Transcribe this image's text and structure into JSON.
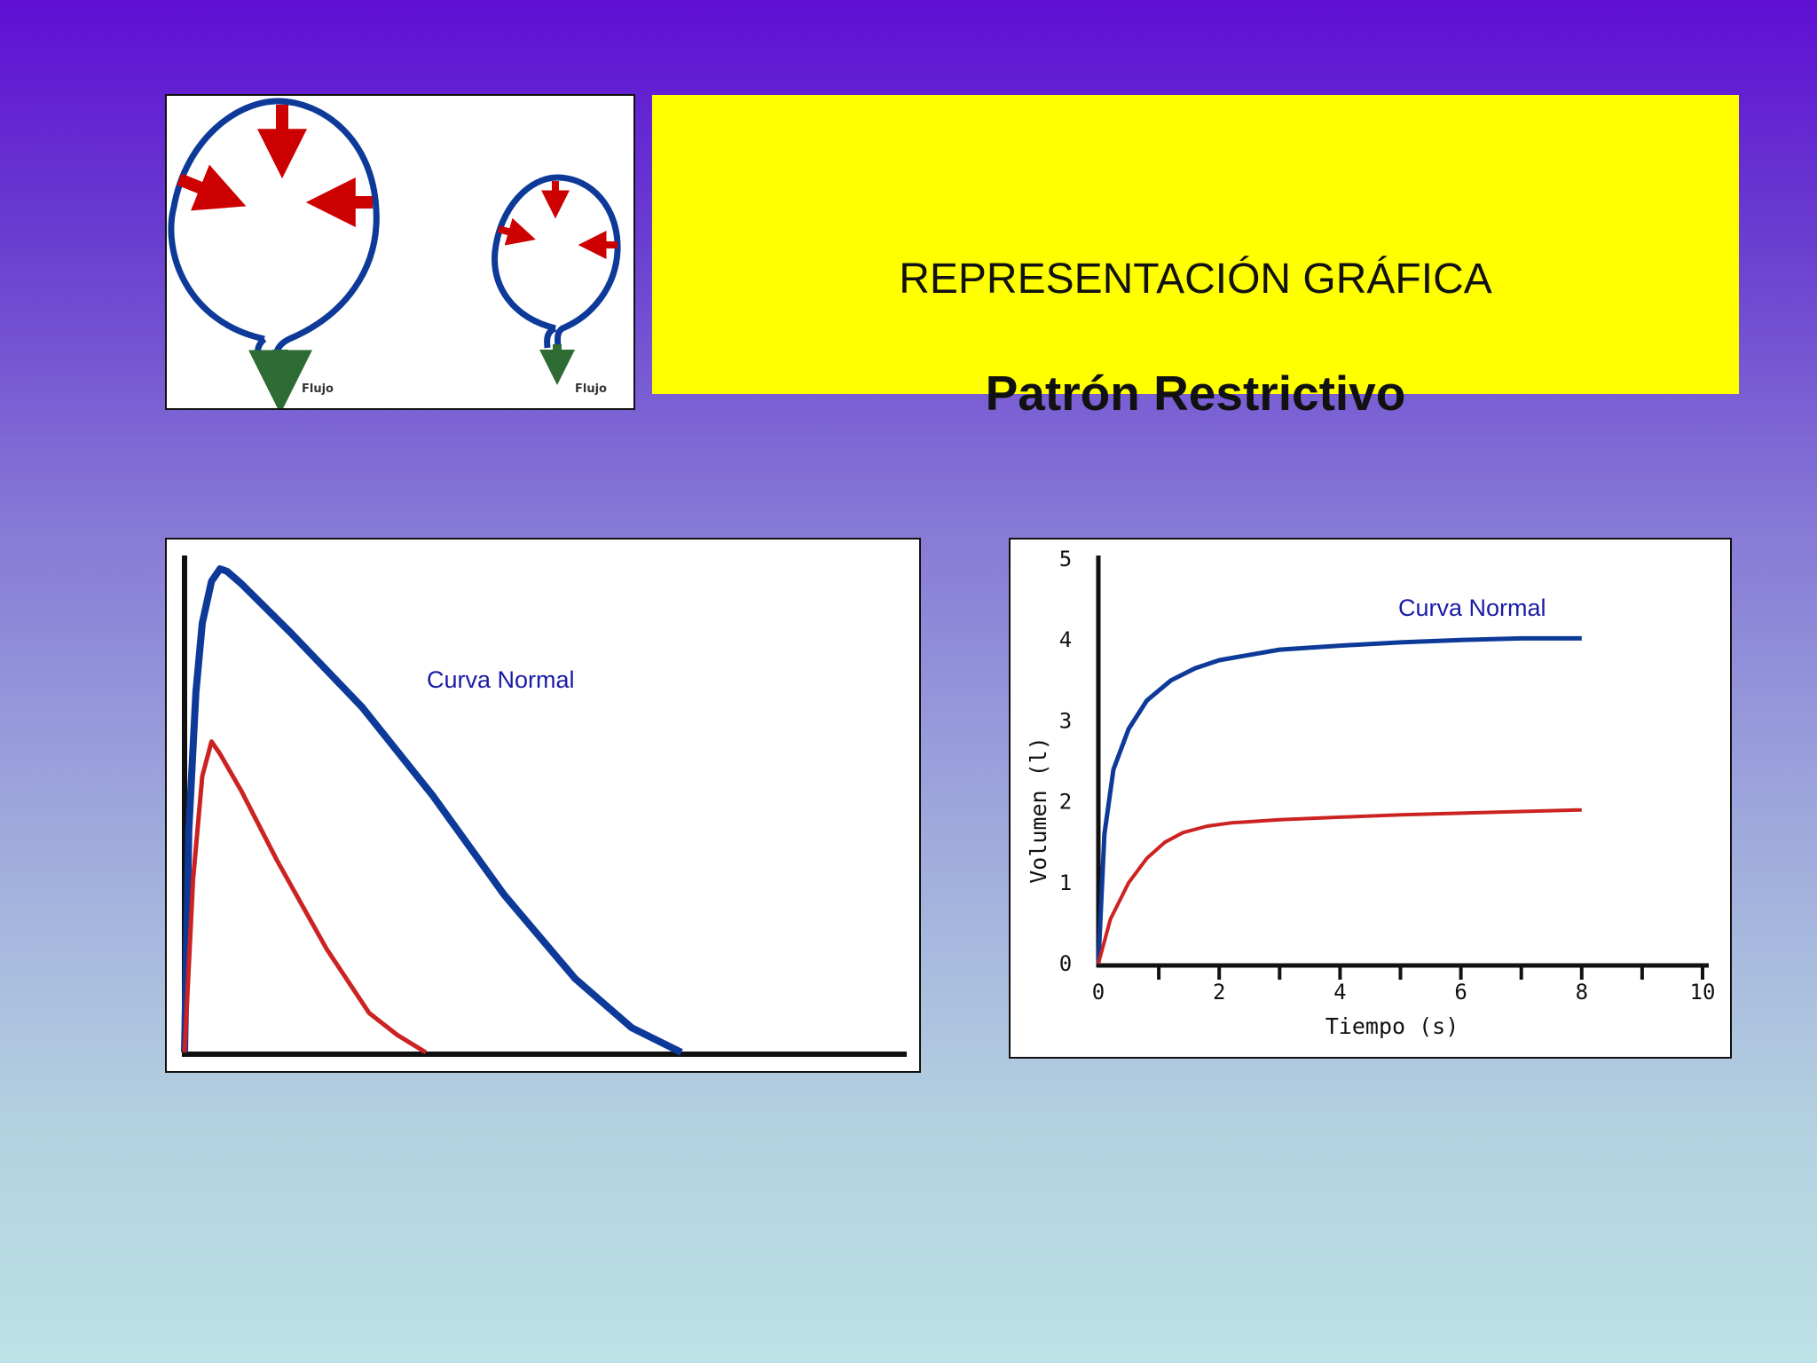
{
  "title": {
    "main": "REPRESENTACIÓN GRÁFICA",
    "subtitle": "Patrón Restrictivo"
  },
  "diagram": {
    "left_label": "Flujo",
    "right_label": "Flujo",
    "colors": {
      "outline": "#0d3a99",
      "pressure_arrow": "#cc0000",
      "flow_arrow": "#2e6b35"
    }
  },
  "chart_data": [
    {
      "type": "line",
      "title": "",
      "xlabel": "",
      "ylabel": "",
      "xlim": [
        0,
        10
      ],
      "ylim": [
        0,
        10
      ],
      "annotations": [
        {
          "text": "Curva Normal",
          "series": "normal"
        }
      ],
      "series": [
        {
          "id": "normal",
          "color": "#0d3a99",
          "x": [
            0,
            0.06,
            0.16,
            0.25,
            0.38,
            0.5,
            0.6,
            0.8,
            1.5,
            2.5,
            3.5,
            4.5,
            5.5,
            6.3,
            7.0
          ],
          "y": [
            0,
            4.5,
            7.3,
            8.7,
            9.55,
            9.8,
            9.75,
            9.5,
            8.5,
            7.0,
            5.2,
            3.2,
            1.5,
            0.5,
            0
          ]
        },
        {
          "id": "restrictive",
          "color": "#cc2222",
          "x": [
            0,
            0.12,
            0.25,
            0.38,
            0.5,
            0.8,
            1.3,
            2.0,
            2.6,
            3.0,
            3.4
          ],
          "y": [
            0,
            3.5,
            5.6,
            6.3,
            6.05,
            5.3,
            3.9,
            2.1,
            0.8,
            0.35,
            0
          ]
        }
      ]
    },
    {
      "type": "line",
      "title": "",
      "xlabel": "Tiempo (s)",
      "ylabel": "Volumen (l)",
      "xlim": [
        0,
        10
      ],
      "ylim": [
        0,
        5
      ],
      "x_ticks": [
        "0",
        "2",
        "4",
        "6",
        "8",
        "10"
      ],
      "y_ticks": [
        "0",
        "1",
        "2",
        "3",
        "4",
        "5"
      ],
      "annotations": [
        {
          "text": "Curva Normal",
          "series": "normal"
        }
      ],
      "series": [
        {
          "id": "normal",
          "color": "#0d3a99",
          "x": [
            0,
            0.1,
            0.25,
            0.5,
            0.8,
            1.2,
            1.6,
            2.0,
            3.0,
            4.0,
            5.0,
            6.0,
            7.0,
            8.0
          ],
          "y": [
            0,
            1.6,
            2.4,
            2.9,
            3.25,
            3.5,
            3.65,
            3.75,
            3.88,
            3.93,
            3.97,
            4.0,
            4.02,
            4.02
          ]
        },
        {
          "id": "restrictive",
          "color": "#cc2222",
          "x": [
            0,
            0.2,
            0.5,
            0.8,
            1.1,
            1.4,
            1.8,
            2.2,
            3.0,
            4.0,
            5.0,
            6.0,
            7.0,
            8.0
          ],
          "y": [
            0,
            0.55,
            1.0,
            1.3,
            1.5,
            1.62,
            1.7,
            1.74,
            1.78,
            1.81,
            1.84,
            1.86,
            1.88,
            1.9
          ]
        }
      ]
    }
  ]
}
